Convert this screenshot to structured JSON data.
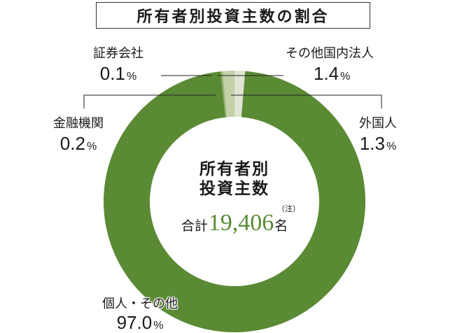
{
  "title": "所有者別投資主数の割合",
  "center": {
    "title_line1": "所有者別",
    "title_line2": "投資主数",
    "note": "（注）",
    "total_label": "合計",
    "total_value": "19,406",
    "total_unit": "名"
  },
  "labels": {
    "securities": {
      "name": "証券会社",
      "value": "0.1",
      "unit": "%"
    },
    "other_domestic": {
      "name": "その他国内法人",
      "value": "1.4",
      "unit": "%"
    },
    "financial": {
      "name": "金融機関",
      "value": "0.2",
      "unit": "%"
    },
    "foreign": {
      "name": "外国人",
      "value": "1.3",
      "unit": "%"
    },
    "individual": {
      "name": "個人・その他",
      "value": "97.0",
      "unit": "%"
    }
  },
  "colors": {
    "individual": "#5b8a35",
    "financial": "#8fae6a",
    "securities": "#a9c08a",
    "other_domestic": "#c3d1a9",
    "foreign": "#dfe5d3",
    "total_value": "#5a8a36"
  },
  "chart_data": {
    "type": "pie",
    "donut": true,
    "title": "所有者別投資主数の割合",
    "center_text": "所有者別投資主数（注） 合計19,406名",
    "categories": [
      "外国人",
      "個人・その他",
      "金融機関",
      "証券会社",
      "その他国内法人"
    ],
    "values": [
      1.3,
      97.0,
      0.2,
      0.1,
      1.4
    ],
    "unit": "%",
    "total": 19406,
    "total_unit": "名"
  }
}
